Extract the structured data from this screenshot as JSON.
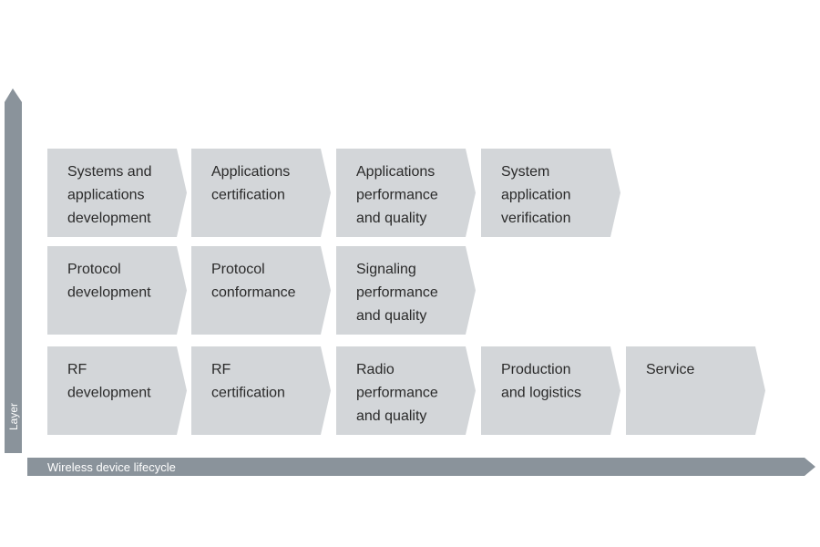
{
  "rows": [
    [
      [
        "Systems and",
        "applications",
        "development"
      ],
      [
        "Applications",
        "certification"
      ],
      [
        "Applications",
        "performance",
        "and quality"
      ],
      [
        "System",
        "application",
        "verification"
      ]
    ],
    [
      [
        "Protocol",
        "development"
      ],
      [
        "Protocol",
        "conformance"
      ],
      [
        "Signaling",
        "performance",
        "and quality"
      ]
    ],
    [
      [
        "RF",
        "development"
      ],
      [
        "RF",
        "certification"
      ],
      [
        "Radio",
        "performance",
        "and quality"
      ],
      [
        "Production",
        "and logistics"
      ],
      [
        "Service"
      ]
    ]
  ],
  "y_axis_label": "Layer",
  "x_axis_label": "Wireless device lifecycle"
}
